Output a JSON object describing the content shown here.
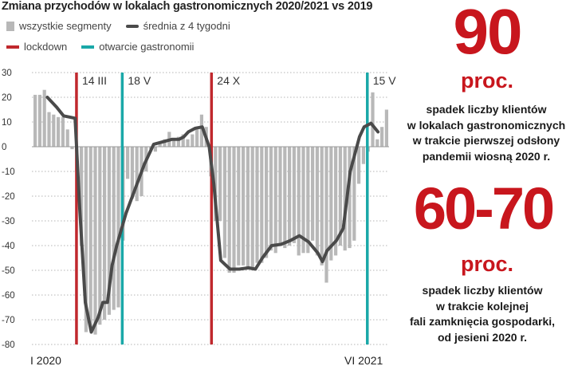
{
  "title": "Zmiana przychodów w lokalach gastronomicznych 2020/2021 vs 2019",
  "legend": {
    "bars": "wszystkie segmenty",
    "line": "średnia z 4 tygodni",
    "lockdown": "lockdown",
    "reopen": "otwarcie gastronomii"
  },
  "colors": {
    "bars": "#b8b8b8",
    "line": "#4a4a4a",
    "lockdown": "#c0282d",
    "reopen": "#1aa8a8",
    "accent": "#c8161d"
  },
  "chart_data": {
    "type": "bar",
    "title": "Zmiana przychodów w lokalach gastronomicznych 2020/2021 vs 2019",
    "ylim": [
      -80,
      30
    ],
    "yticks": [
      30,
      20,
      10,
      0,
      -10,
      -20,
      -30,
      -40,
      -50,
      -60,
      -70,
      -80
    ],
    "xlabel_start": "I 2020",
    "xlabel_end": "VI 2021",
    "bar_index_range": [
      0,
      75
    ],
    "series": [
      {
        "name": "wszystkie segmenty",
        "values": [
          21,
          21,
          23,
          14,
          13,
          12,
          12,
          7,
          -1,
          -10,
          -40,
          -75,
          -74,
          -76,
          -72,
          -70,
          -68,
          -66,
          -65,
          -38,
          -13,
          -21,
          -22,
          -20,
          -10,
          -1,
          -2,
          2,
          3,
          6,
          3,
          4,
          5,
          3,
          5,
          7,
          13,
          8,
          -12,
          -30,
          -30,
          -45,
          -51,
          -51,
          -48,
          -48,
          -49,
          -50,
          -47,
          -47,
          -45,
          -42,
          -43,
          -40,
          -41,
          -40,
          -39,
          -44,
          -43,
          -43,
          -38,
          -44,
          -48,
          -55,
          -46,
          -44,
          -40,
          -42,
          -41,
          -38,
          -15,
          -7,
          -2,
          22,
          3,
          8,
          15
        ]
      },
      {
        "name": "średnia z 4 tygodni",
        "type": "line",
        "x": [
          3,
          5,
          6.5,
          7.8,
          9,
          10,
          11.2,
          12.5,
          14,
          15,
          16,
          17,
          18,
          20,
          22,
          24,
          26,
          28,
          30,
          31.5,
          32.5,
          33.5,
          35,
          36.5,
          38,
          39,
          40.5,
          42.5,
          44.5,
          46.5,
          48,
          49.5,
          51.5,
          53.5,
          55.5,
          57.5,
          59.5,
          61.5,
          62.5,
          63.5,
          65.5,
          67,
          68.5,
          70.5,
          71.5,
          73,
          74.5,
          76,
          77
        ],
        "values": [
          20,
          16,
          12.5,
          12,
          11.5,
          -25,
          -63,
          -75,
          -69,
          -63,
          -63,
          -48,
          -40,
          -27,
          -17,
          -7,
          1,
          2,
          3,
          3,
          4,
          6,
          7.5,
          8,
          0,
          -15,
          -46,
          -49.5,
          -49.5,
          -49,
          -49.5,
          -45,
          -40,
          -39.5,
          -38,
          -36,
          -38.5,
          -43,
          -46.5,
          -42,
          -38,
          -33,
          -10,
          4,
          8,
          9.5,
          6,
          null,
          null
        ]
      }
    ],
    "events": [
      {
        "type": "lockdown",
        "x": 9.3,
        "label": "14 III"
      },
      {
        "type": "reopen",
        "x": 19.2,
        "label": "18 V"
      },
      {
        "type": "lockdown",
        "x": 38.5,
        "label": "24 X"
      },
      {
        "type": "reopen",
        "x": 72.2,
        "label": "15 V"
      }
    ]
  },
  "stat1": {
    "value": "90",
    "unit": "proc.",
    "lines": [
      "spadek liczby klientów",
      "w lokalach gastronomicznych",
      "w trakcie pierwszej odsłony",
      "pandemii wiosną 2020 r."
    ]
  },
  "stat2": {
    "value": "60-70",
    "unit": "proc.",
    "lines": [
      "spadek liczby klientów",
      "w trakcie kolejnej",
      "fali zamknięcia gospodarki,",
      "od jesieni 2020 r."
    ]
  }
}
